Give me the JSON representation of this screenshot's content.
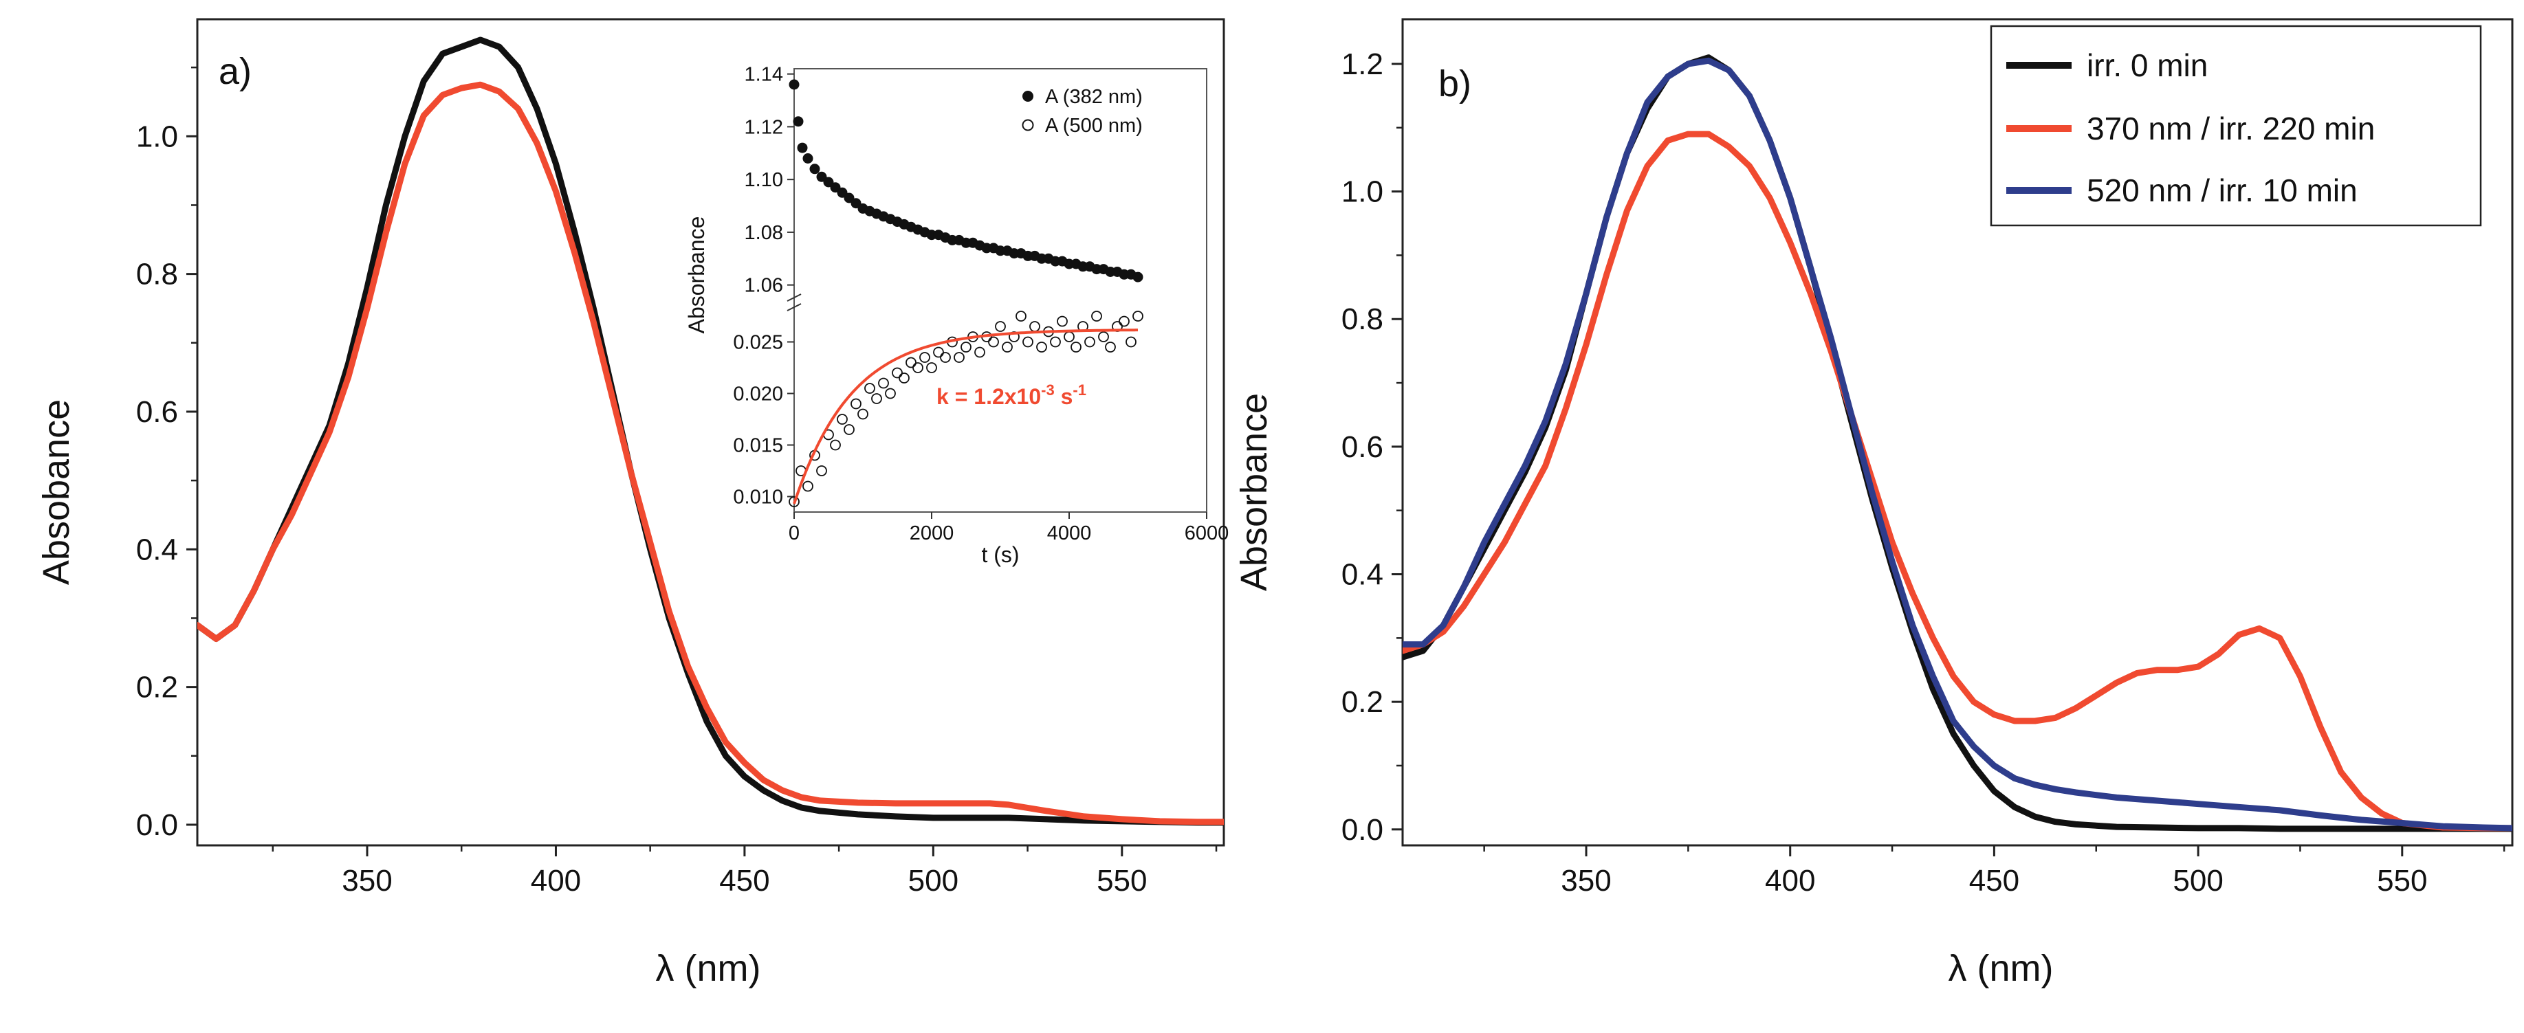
{
  "chart_data": [
    {
      "panel": "a)",
      "type": "line",
      "xlabel": "λ (nm)",
      "ylabel": "Absobance",
      "xlim": [
        305,
        577
      ],
      "ylim": [
        -0.03,
        1.17
      ],
      "xticks": [
        350,
        400,
        450,
        500,
        550
      ],
      "yticks": [
        0.0,
        0.2,
        0.4,
        0.6,
        0.8,
        1.0
      ],
      "ytick_labels": [
        "0.0",
        "0.2",
        "0.4",
        "0.6",
        "0.8",
        "1.0"
      ],
      "series": [
        {
          "name": "black",
          "color": "#111111",
          "x": [
            305,
            310,
            315,
            320,
            325,
            330,
            335,
            340,
            345,
            350,
            355,
            360,
            365,
            370,
            375,
            380,
            385,
            390,
            395,
            400,
            405,
            410,
            415,
            420,
            425,
            430,
            435,
            440,
            445,
            450,
            455,
            460,
            465,
            470,
            480,
            490,
            500,
            510,
            520,
            530,
            540,
            550,
            560,
            570,
            577
          ],
          "y": [
            0.29,
            0.27,
            0.29,
            0.34,
            0.4,
            0.46,
            0.52,
            0.58,
            0.67,
            0.78,
            0.9,
            1.0,
            1.08,
            1.12,
            1.13,
            1.14,
            1.13,
            1.1,
            1.04,
            0.96,
            0.86,
            0.75,
            0.63,
            0.51,
            0.4,
            0.3,
            0.22,
            0.15,
            0.1,
            0.07,
            0.05,
            0.035,
            0.025,
            0.02,
            0.015,
            0.012,
            0.01,
            0.01,
            0.01,
            0.008,
            0.006,
            0.005,
            0.004,
            0.003,
            0.003
          ]
        },
        {
          "name": "red",
          "color": "#f04a30",
          "x": [
            305,
            310,
            315,
            320,
            325,
            330,
            335,
            340,
            345,
            350,
            355,
            360,
            365,
            370,
            375,
            380,
            385,
            390,
            395,
            400,
            405,
            410,
            415,
            420,
            425,
            430,
            435,
            440,
            445,
            450,
            455,
            460,
            465,
            470,
            480,
            490,
            500,
            510,
            515,
            520,
            530,
            540,
            550,
            560,
            570,
            577
          ],
          "y": [
            0.29,
            0.27,
            0.29,
            0.34,
            0.4,
            0.45,
            0.51,
            0.57,
            0.65,
            0.75,
            0.86,
            0.96,
            1.03,
            1.06,
            1.07,
            1.075,
            1.065,
            1.04,
            0.99,
            0.92,
            0.83,
            0.73,
            0.62,
            0.51,
            0.41,
            0.31,
            0.23,
            0.17,
            0.12,
            0.09,
            0.065,
            0.05,
            0.04,
            0.035,
            0.032,
            0.031,
            0.031,
            0.031,
            0.031,
            0.029,
            0.02,
            0.012,
            0.008,
            0.005,
            0.004,
            0.004
          ]
        }
      ],
      "inset": {
        "xlabel": "t (s)",
        "ylabel": "Absorbance",
        "xlim": [
          0,
          6000
        ],
        "xticks": [
          0,
          2000,
          4000,
          6000
        ],
        "upper": {
          "ylim": [
            1.056,
            1.142
          ],
          "yticks": [
            1.06,
            1.08,
            1.1,
            1.12,
            1.14
          ],
          "ytick_labels": [
            "1.06",
            "1.08",
            "1.10",
            "1.12",
            "1.14"
          ],
          "series_name": "A (382 nm)",
          "marker": "filled-circle",
          "t": [
            0,
            60,
            120,
            200,
            300,
            400,
            500,
            600,
            700,
            800,
            900,
            1000,
            1100,
            1200,
            1300,
            1400,
            1500,
            1600,
            1700,
            1800,
            1900,
            2000,
            2100,
            2200,
            2300,
            2400,
            2500,
            2600,
            2700,
            2800,
            2900,
            3000,
            3100,
            3200,
            3300,
            3400,
            3500,
            3600,
            3700,
            3800,
            3900,
            4000,
            4100,
            4200,
            4300,
            4400,
            4500,
            4600,
            4700,
            4800,
            4900,
            5000
          ],
          "values": [
            1.136,
            1.122,
            1.112,
            1.108,
            1.104,
            1.101,
            1.099,
            1.097,
            1.095,
            1.093,
            1.091,
            1.089,
            1.088,
            1.087,
            1.086,
            1.085,
            1.084,
            1.083,
            1.082,
            1.081,
            1.08,
            1.079,
            1.079,
            1.078,
            1.077,
            1.077,
            1.076,
            1.076,
            1.075,
            1.074,
            1.074,
            1.073,
            1.073,
            1.072,
            1.072,
            1.071,
            1.071,
            1.07,
            1.07,
            1.069,
            1.069,
            1.068,
            1.068,
            1.067,
            1.067,
            1.066,
            1.066,
            1.065,
            1.065,
            1.064,
            1.064,
            1.063
          ]
        },
        "lower": {
          "ylim": [
            0.0085,
            0.0275
          ],
          "yticks": [
            0.01,
            0.015,
            0.02,
            0.025
          ],
          "ytick_labels": [
            "0.010",
            "0.015",
            "0.020",
            "0.025"
          ],
          "series_name": "A (500 nm)",
          "marker": "open-circle",
          "t": [
            0,
            100,
            200,
            300,
            400,
            500,
            600,
            700,
            800,
            900,
            1000,
            1100,
            1200,
            1300,
            1400,
            1500,
            1600,
            1700,
            1800,
            1900,
            2000,
            2100,
            2200,
            2300,
            2400,
            2500,
            2600,
            2700,
            2800,
            2900,
            3000,
            3100,
            3200,
            3300,
            3400,
            3500,
            3600,
            3700,
            3800,
            3900,
            4000,
            4100,
            4200,
            4300,
            4400,
            4500,
            4600,
            4700,
            4800,
            4900,
            5000
          ],
          "values": [
            0.0095,
            0.0125,
            0.011,
            0.014,
            0.0125,
            0.016,
            0.015,
            0.0175,
            0.0165,
            0.019,
            0.018,
            0.0205,
            0.0195,
            0.021,
            0.02,
            0.022,
            0.0215,
            0.023,
            0.0225,
            0.0235,
            0.0225,
            0.024,
            0.0235,
            0.025,
            0.0235,
            0.0245,
            0.0255,
            0.024,
            0.0255,
            0.025,
            0.0265,
            0.0245,
            0.0255,
            0.0275,
            0.025,
            0.0265,
            0.0245,
            0.026,
            0.025,
            0.027,
            0.0255,
            0.0245,
            0.0265,
            0.025,
            0.0275,
            0.0255,
            0.0245,
            0.0265,
            0.027,
            0.025,
            0.0275
          ],
          "fit": {
            "label": "k = 1.2x10",
            "exponent_1": "-3",
            "unit": " s",
            "exponent_2": "-1",
            "A0": 0.0093,
            "Ainf": 0.0262,
            "k": 0.0012,
            "color": "#f04a30"
          }
        }
      }
    },
    {
      "panel": "b)",
      "type": "line",
      "xlabel": "λ (nm)",
      "ylabel": "Absorbance",
      "xlim": [
        305,
        577
      ],
      "ylim": [
        -0.025,
        1.27
      ],
      "xticks": [
        350,
        400,
        450,
        500,
        550
      ],
      "yticks": [
        0.0,
        0.2,
        0.4,
        0.6,
        0.8,
        1.0,
        1.2
      ],
      "ytick_labels": [
        "0.0",
        "0.2",
        "0.4",
        "0.6",
        "0.8",
        "1.0",
        "1.2"
      ],
      "series": [
        {
          "name": "irr. 0 min",
          "color": "#111111",
          "x": [
            305,
            310,
            315,
            320,
            325,
            330,
            335,
            340,
            345,
            350,
            355,
            360,
            365,
            370,
            375,
            380,
            385,
            390,
            395,
            400,
            405,
            410,
            415,
            420,
            425,
            430,
            435,
            440,
            445,
            450,
            455,
            460,
            465,
            470,
            480,
            490,
            500,
            510,
            520,
            530,
            540,
            550,
            560,
            570,
            577
          ],
          "y": [
            0.27,
            0.28,
            0.32,
            0.38,
            0.44,
            0.5,
            0.56,
            0.63,
            0.72,
            0.84,
            0.96,
            1.06,
            1.13,
            1.18,
            1.2,
            1.21,
            1.19,
            1.15,
            1.08,
            0.99,
            0.88,
            0.76,
            0.64,
            0.52,
            0.41,
            0.31,
            0.22,
            0.15,
            0.1,
            0.06,
            0.035,
            0.02,
            0.012,
            0.008,
            0.004,
            0.003,
            0.002,
            0.002,
            0.001,
            0.001,
            0.001,
            0.001,
            0.001,
            0.001,
            0.001
          ]
        },
        {
          "name": "370 nm / irr. 220 min",
          "color": "#f04a30",
          "x": [
            305,
            310,
            315,
            320,
            325,
            330,
            335,
            340,
            345,
            350,
            355,
            360,
            365,
            370,
            375,
            380,
            385,
            390,
            395,
            400,
            405,
            410,
            415,
            420,
            425,
            430,
            435,
            440,
            445,
            450,
            455,
            460,
            465,
            470,
            475,
            480,
            485,
            490,
            495,
            500,
            505,
            510,
            515,
            520,
            525,
            530,
            535,
            540,
            545,
            550,
            560,
            570,
            577
          ],
          "y": [
            0.28,
            0.29,
            0.31,
            0.35,
            0.4,
            0.45,
            0.51,
            0.57,
            0.66,
            0.76,
            0.87,
            0.97,
            1.04,
            1.08,
            1.09,
            1.09,
            1.07,
            1.04,
            0.99,
            0.92,
            0.84,
            0.75,
            0.65,
            0.55,
            0.45,
            0.37,
            0.3,
            0.24,
            0.2,
            0.18,
            0.17,
            0.17,
            0.175,
            0.19,
            0.21,
            0.23,
            0.245,
            0.25,
            0.25,
            0.255,
            0.275,
            0.305,
            0.315,
            0.3,
            0.24,
            0.16,
            0.09,
            0.05,
            0.025,
            0.01,
            0.003,
            0.002,
            0.002
          ]
        },
        {
          "name": "520 nm / irr. 10 min",
          "color": "#2e3d8c",
          "x": [
            305,
            310,
            315,
            320,
            325,
            330,
            335,
            340,
            345,
            350,
            355,
            360,
            365,
            370,
            375,
            380,
            385,
            390,
            395,
            400,
            405,
            410,
            415,
            420,
            425,
            430,
            435,
            440,
            445,
            450,
            455,
            460,
            465,
            470,
            480,
            490,
            500,
            510,
            520,
            530,
            540,
            550,
            560,
            570,
            577
          ],
          "y": [
            0.29,
            0.29,
            0.32,
            0.38,
            0.45,
            0.51,
            0.57,
            0.64,
            0.73,
            0.84,
            0.96,
            1.06,
            1.14,
            1.18,
            1.2,
            1.205,
            1.19,
            1.15,
            1.08,
            0.99,
            0.88,
            0.77,
            0.65,
            0.53,
            0.42,
            0.32,
            0.24,
            0.17,
            0.13,
            0.1,
            0.08,
            0.07,
            0.063,
            0.058,
            0.05,
            0.045,
            0.04,
            0.035,
            0.03,
            0.022,
            0.015,
            0.01,
            0.005,
            0.003,
            0.002
          ]
        }
      ]
    }
  ]
}
